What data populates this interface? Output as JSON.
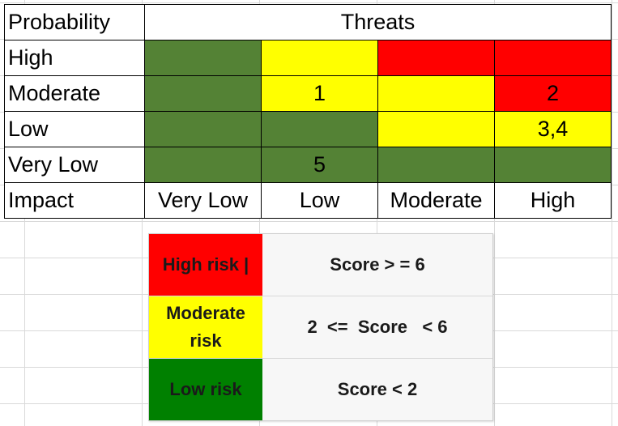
{
  "matrix": {
    "header": {
      "probability_label": "Probability",
      "threats_label": "Threats"
    },
    "rows": [
      {
        "label": "High",
        "cells": [
          {
            "color": "green",
            "text": ""
          },
          {
            "color": "yellow",
            "text": ""
          },
          {
            "color": "red",
            "text": ""
          },
          {
            "color": "red",
            "text": ""
          }
        ]
      },
      {
        "label": "Moderate",
        "cells": [
          {
            "color": "green",
            "text": ""
          },
          {
            "color": "yellow",
            "text": "1"
          },
          {
            "color": "yellow",
            "text": ""
          },
          {
            "color": "red",
            "text": "2"
          }
        ]
      },
      {
        "label": "Low",
        "cells": [
          {
            "color": "green",
            "text": ""
          },
          {
            "color": "green",
            "text": ""
          },
          {
            "color": "yellow",
            "text": ""
          },
          {
            "color": "yellow",
            "text": "3,4"
          }
        ]
      },
      {
        "label": "Very Low",
        "cells": [
          {
            "color": "green",
            "text": ""
          },
          {
            "color": "green",
            "text": "5"
          },
          {
            "color": "green",
            "text": ""
          },
          {
            "color": "green",
            "text": ""
          }
        ]
      }
    ],
    "impact_label": "Impact",
    "impact_levels": [
      "Very Low",
      "Low",
      "Moderate",
      "High"
    ]
  },
  "legend": {
    "items": [
      {
        "label": "High risk |",
        "rule": "Score > = 6"
      },
      {
        "label": "Moderate risk",
        "rule": "2  <=  Score   < 6"
      },
      {
        "label": "Low risk",
        "rule": "Score < 2"
      }
    ]
  },
  "colors": {
    "matrix_green": "#548235",
    "matrix_yellow": "#ffff00",
    "matrix_red": "#ff0000",
    "legend_green": "#008000"
  }
}
